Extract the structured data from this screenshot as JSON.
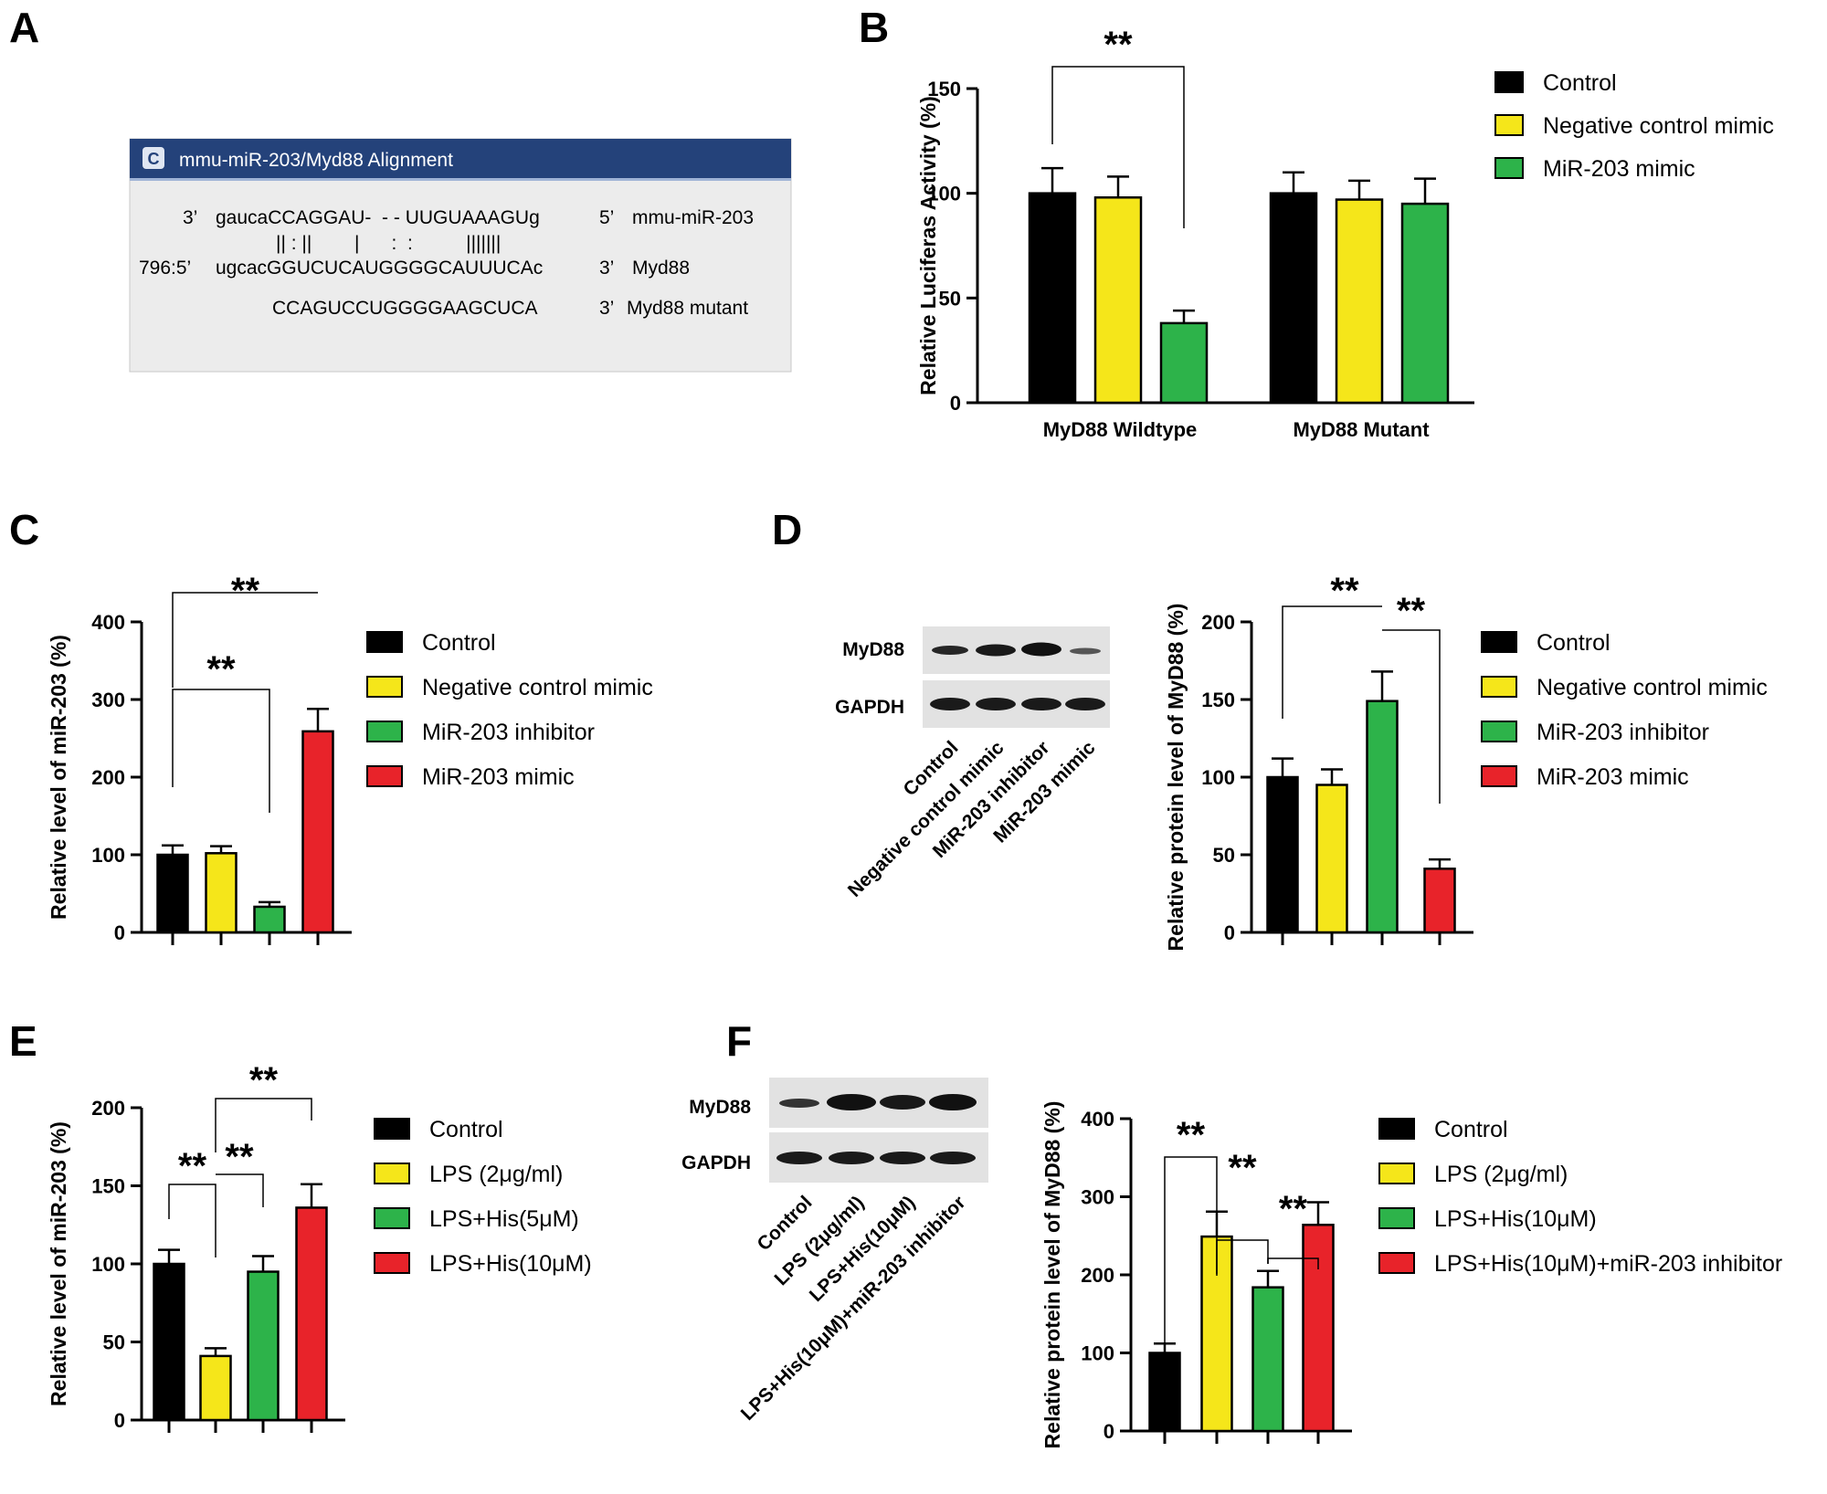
{
  "panels": {
    "A": {
      "letter": "A",
      "window_title": "mmu-miR-203/Myd88 Alignment",
      "window_icon": "C",
      "alignment": {
        "mirna_prefix": "3’",
        "mirna_seq": "gaucaCCAGGAU-  - - UUGUAAAGUg",
        "mirna_end": "5’",
        "mirna_label": "mmu-miR-203",
        "pairing": "|| : ||        |      :  :          |||||||",
        "target_prefix": "796:5’",
        "target_seq": "ugcacGGUCUCAUGGGGCAUUUCAc",
        "target_end": "3’",
        "target_label": "Myd88",
        "mutant_seq": "CCAGUCCUGGGGAAGCUCA",
        "mutant_end": "3’",
        "mutant_label": "Myd88 mutant"
      }
    },
    "B": {
      "letter": "B"
    },
    "C": {
      "letter": "C"
    },
    "D": {
      "letter": "D",
      "blot_rows": [
        "MyD88",
        "GAPDH"
      ],
      "lanes": [
        "Control",
        "Negative control mimic",
        "MiR-203 inhibitor",
        "MiR-203 mimic"
      ]
    },
    "E": {
      "letter": "E"
    },
    "F": {
      "letter": "F",
      "blot_rows": [
        "MyD88",
        "GAPDH"
      ],
      "lanes": [
        "Control",
        "LPS (2μg/ml)",
        "LPS+His(10μM)",
        "LPS+His(10μM)+miR-203 inhibitor"
      ]
    }
  },
  "colors": {
    "black": "#000000",
    "yellow": "#f5e61a",
    "green": "#2db34a",
    "red": "#e8232a",
    "header": "#24427a"
  },
  "significance": "**",
  "chart_data": [
    {
      "id": "B",
      "type": "bar",
      "ylabel": "Relative Luciferas Activity (%)",
      "ylim": [
        0,
        150
      ],
      "yticks": [
        0,
        50,
        100,
        150
      ],
      "categories": [
        "MyD88 Wildtype",
        "MyD88 Mutant"
      ],
      "series": [
        {
          "name": "Control",
          "color": "#000000",
          "values": [
            100,
            100
          ],
          "errors": [
            12,
            10
          ]
        },
        {
          "name": "Negative control mimic",
          "color": "#f5e61a",
          "values": [
            98,
            97
          ],
          "errors": [
            10,
            9
          ]
        },
        {
          "name": "MiR-203 mimic",
          "color": "#2db34a",
          "values": [
            38,
            95
          ],
          "errors": [
            6,
            12
          ]
        }
      ],
      "annotations": [
        {
          "from": "Control@MyD88 Wildtype",
          "to": "MiR-203 mimic@MyD88 Wildtype",
          "label": "**"
        }
      ]
    },
    {
      "id": "C",
      "type": "bar",
      "ylabel": "Relative level of miR-203 (%)",
      "ylim": [
        0,
        400
      ],
      "yticks": [
        0,
        100,
        200,
        300,
        400
      ],
      "categories": [
        "Control",
        "Negative control mimic",
        "MiR-203 inhibitor",
        "MiR-203 mimic"
      ],
      "colors": [
        "#000000",
        "#f5e61a",
        "#2db34a",
        "#e8232a"
      ],
      "values": [
        100,
        102,
        33,
        259
      ],
      "errors": [
        12,
        9,
        6,
        29
      ],
      "annotations": [
        {
          "from": 0,
          "to": 3,
          "label": "**"
        },
        {
          "from": 0,
          "to": 2,
          "label": "**"
        }
      ]
    },
    {
      "id": "D",
      "type": "bar",
      "ylabel": "Relative protein level of MyD88 (%)",
      "ylim": [
        0,
        200
      ],
      "yticks": [
        0,
        50,
        100,
        150,
        200
      ],
      "categories": [
        "Control",
        "Negative control mimic",
        "MiR-203 inhibitor",
        "MiR-203 mimic"
      ],
      "colors": [
        "#000000",
        "#f5e61a",
        "#2db34a",
        "#e8232a"
      ],
      "values": [
        100,
        95,
        149,
        41
      ],
      "errors": [
        12,
        10,
        19,
        6
      ],
      "annotations": [
        {
          "from": 0,
          "to": 2,
          "label": "**"
        },
        {
          "from": 2,
          "to": 3,
          "label": "**"
        }
      ]
    },
    {
      "id": "E",
      "type": "bar",
      "ylabel": "Relative level of miR-203 (%)",
      "ylim": [
        0,
        200
      ],
      "yticks": [
        0,
        50,
        100,
        150,
        200
      ],
      "categories": [
        "Control",
        "LPS (2μg/ml)",
        "LPS+His(5μM)",
        "LPS+His(10μM)"
      ],
      "colors": [
        "#000000",
        "#f5e61a",
        "#2db34a",
        "#e8232a"
      ],
      "values": [
        100,
        41,
        95,
        136
      ],
      "errors": [
        9,
        5,
        10,
        15
      ],
      "annotations": [
        {
          "from": 0,
          "to": 1,
          "label": "**"
        },
        {
          "from": 1,
          "to": 2,
          "label": "**"
        },
        {
          "from": 1,
          "to": 3,
          "label": "**"
        }
      ]
    },
    {
      "id": "F",
      "type": "bar",
      "ylabel": "Relative protein level of MyD88 (%)",
      "ylim": [
        0,
        400
      ],
      "yticks": [
        0,
        100,
        200,
        300,
        400
      ],
      "categories": [
        "Control",
        "LPS (2μg/ml)",
        "LPS+His(10μM)",
        "LPS+His(10μM)+miR-203 inhibitor"
      ],
      "colors": [
        "#000000",
        "#f5e61a",
        "#2db34a",
        "#e8232a"
      ],
      "values": [
        100,
        249,
        184,
        264
      ],
      "errors": [
        12,
        32,
        21,
        29
      ],
      "annotations": [
        {
          "from": 0,
          "to": 1,
          "label": "**"
        },
        {
          "from": 1,
          "to": 2,
          "label": "**"
        },
        {
          "from": 2,
          "to": 3,
          "label": "**"
        }
      ]
    }
  ]
}
